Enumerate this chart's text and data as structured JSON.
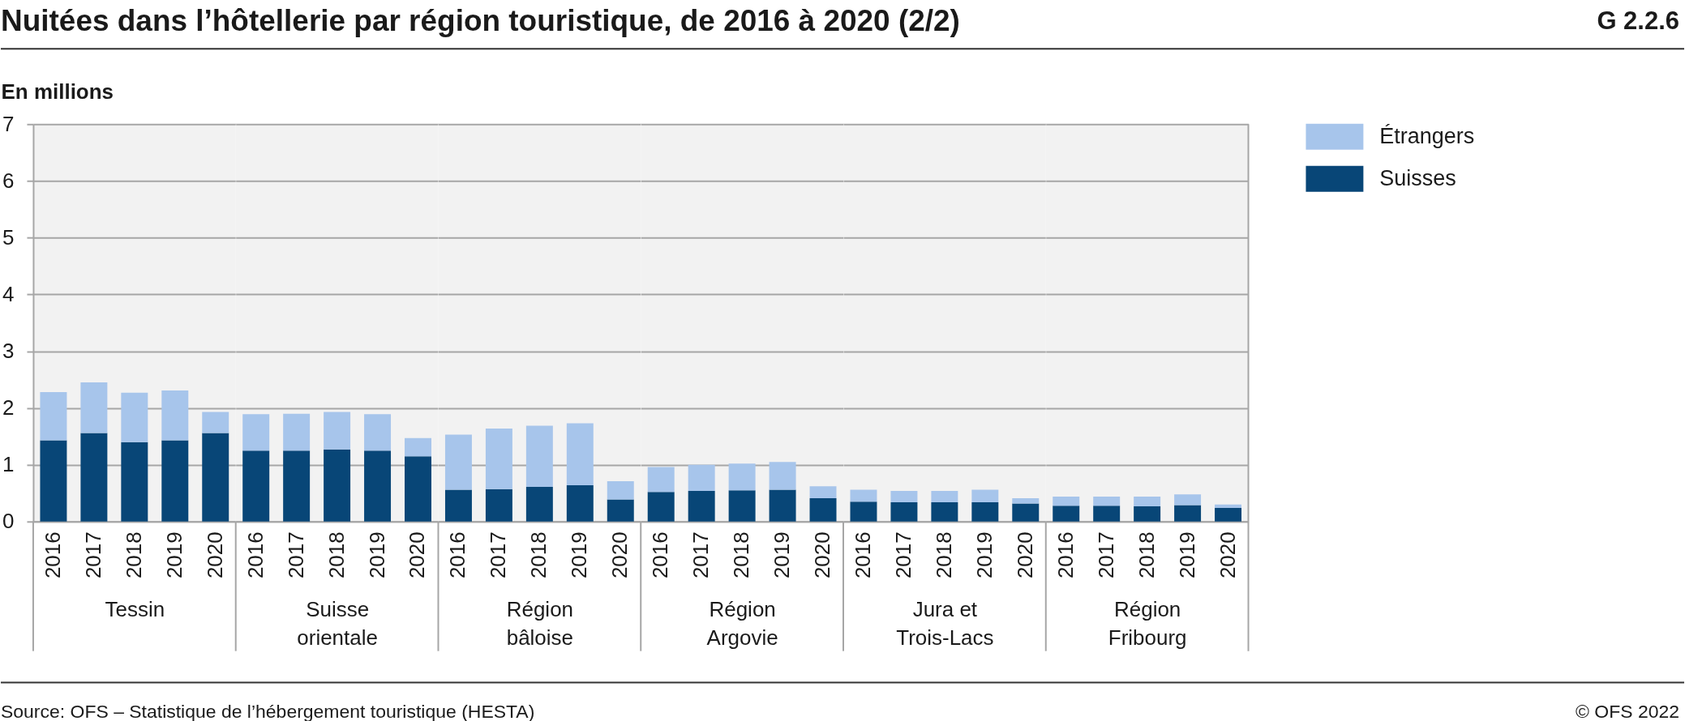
{
  "chart_data": [
    {
      "type": "bar",
      "title": "Nuitées dans l’hôtellerie par région touristique, de 2016 à 2020 (2/2)",
      "ylabel": "En millions",
      "xlabel": "Tessin",
      "categories": [
        "2016",
        "2017",
        "2018",
        "2019",
        "2020"
      ],
      "stacked": true,
      "series": [
        {
          "name": "Suisses",
          "color": "#084677",
          "values": [
            1.43,
            1.56,
            1.4,
            1.43,
            1.56
          ]
        },
        {
          "name": "Étrangers",
          "color": "#a7c5eb",
          "values": [
            0.85,
            0.89,
            0.87,
            0.88,
            0.37
          ]
        }
      ],
      "ylim": [
        0,
        7
      ],
      "yticks": [
        0,
        1,
        2,
        3,
        4,
        5,
        6,
        7
      ],
      "grid": "y",
      "legend": "top right",
      "annotations": [
        "G 2.2.6",
        "Source: OFS – Statistique de l’hébergement touristique (HESTA)",
        "© OFS 2022"
      ]
    },
    {
      "type": "bar",
      "xlabel": "Suisse orientale",
      "categories": [
        "2016",
        "2017",
        "2018",
        "2019",
        "2020"
      ],
      "stacked": true,
      "series": [
        {
          "color": "#084677",
          "values": [
            1.25,
            1.25,
            1.27,
            1.25,
            1.15
          ]
        },
        {
          "color": "#a7c5eb",
          "values": [
            0.64,
            0.65,
            0.66,
            0.64,
            0.32
          ]
        }
      ],
      "ylim": [
        0,
        7
      ],
      "yticks": [
        0,
        1,
        2,
        3,
        4,
        5,
        6,
        7
      ],
      "grid": "y",
      "tick_labels": "x"
    },
    {
      "type": "bar",
      "xlabel": "Région bâloise",
      "categories": [
        "2016",
        "2017",
        "2018",
        "2019",
        "2020"
      ],
      "stacked": true,
      "series": [
        {
          "color": "#084677",
          "values": [
            0.56,
            0.57,
            0.61,
            0.64,
            0.39
          ]
        },
        {
          "color": "#a7c5eb",
          "values": [
            0.97,
            1.07,
            1.08,
            1.09,
            0.32
          ]
        }
      ],
      "ylim": [
        0,
        7
      ],
      "yticks": [
        0,
        1,
        2,
        3,
        4,
        5,
        6,
        7
      ],
      "grid": "y",
      "tick_labels": "x"
    },
    {
      "type": "bar",
      "xlabel": "Région Argovie",
      "categories": [
        "2016",
        "2017",
        "2018",
        "2019",
        "2020"
      ],
      "stacked": true,
      "series": [
        {
          "color": "#084677",
          "values": [
            0.52,
            0.54,
            0.55,
            0.56,
            0.41
          ]
        },
        {
          "color": "#a7c5eb",
          "values": [
            0.44,
            0.46,
            0.47,
            0.49,
            0.21
          ]
        }
      ],
      "ylim": [
        0,
        7
      ],
      "yticks": [
        0,
        1,
        2,
        3,
        4,
        5,
        6,
        7
      ],
      "grid": "y",
      "tick_labels": "x"
    },
    {
      "type": "bar",
      "xlabel": "Jura et Trois-Lacs",
      "categories": [
        "2016",
        "2017",
        "2018",
        "2019",
        "2020"
      ],
      "stacked": true,
      "series": [
        {
          "color": "#084677",
          "values": [
            0.35,
            0.34,
            0.34,
            0.34,
            0.32
          ]
        },
        {
          "color": "#a7c5eb",
          "values": [
            0.21,
            0.2,
            0.2,
            0.22,
            0.09
          ]
        }
      ],
      "ylim": [
        0,
        7
      ],
      "yticks": [
        0,
        1,
        2,
        3,
        4,
        5,
        6,
        7
      ],
      "grid": "y",
      "tick_labels": "x"
    },
    {
      "type": "bar",
      "xlabel": "Région Fribourg",
      "categories": [
        "2016",
        "2017",
        "2018",
        "2019",
        "2020"
      ],
      "stacked": true,
      "series": [
        {
          "color": "#084677",
          "values": [
            0.28,
            0.28,
            0.27,
            0.29,
            0.24
          ]
        },
        {
          "color": "#a7c5eb",
          "values": [
            0.16,
            0.16,
            0.17,
            0.19,
            0.06
          ]
        }
      ],
      "ylim": [
        0,
        7
      ],
      "yticks": [
        0,
        1,
        2,
        3,
        4,
        5,
        6,
        7
      ],
      "grid": "y",
      "tick_labels": "x"
    }
  ]
}
